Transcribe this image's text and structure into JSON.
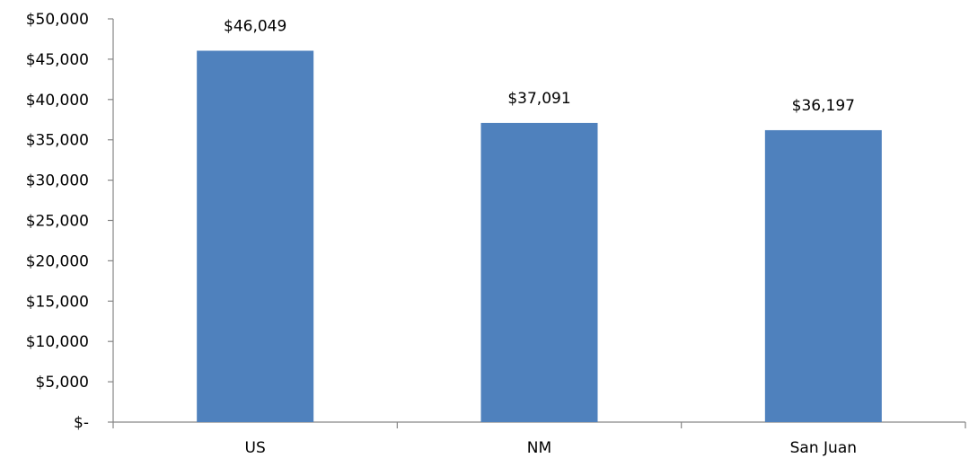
{
  "chart_data": {
    "type": "bar",
    "categories": [
      "US",
      "NM",
      "San Juan"
    ],
    "values": [
      46049,
      37091,
      36197
    ],
    "data_labels": [
      "$46,049",
      "$37,091",
      "$36,197"
    ],
    "ylim": [
      0,
      50000
    ],
    "y_ticks": [
      0,
      5000,
      10000,
      15000,
      20000,
      25000,
      30000,
      35000,
      40000,
      45000,
      50000
    ],
    "y_tick_labels": [
      "$-",
      "$5,000",
      "$10,000",
      "$15,000",
      "$20,000",
      "$25,000",
      "$30,000",
      "$35,000",
      "$40,000",
      "$45,000",
      "$50,000"
    ],
    "grid": false,
    "legend": "none",
    "bar_color": "#4f81bd",
    "axis_color": "#868686"
  }
}
